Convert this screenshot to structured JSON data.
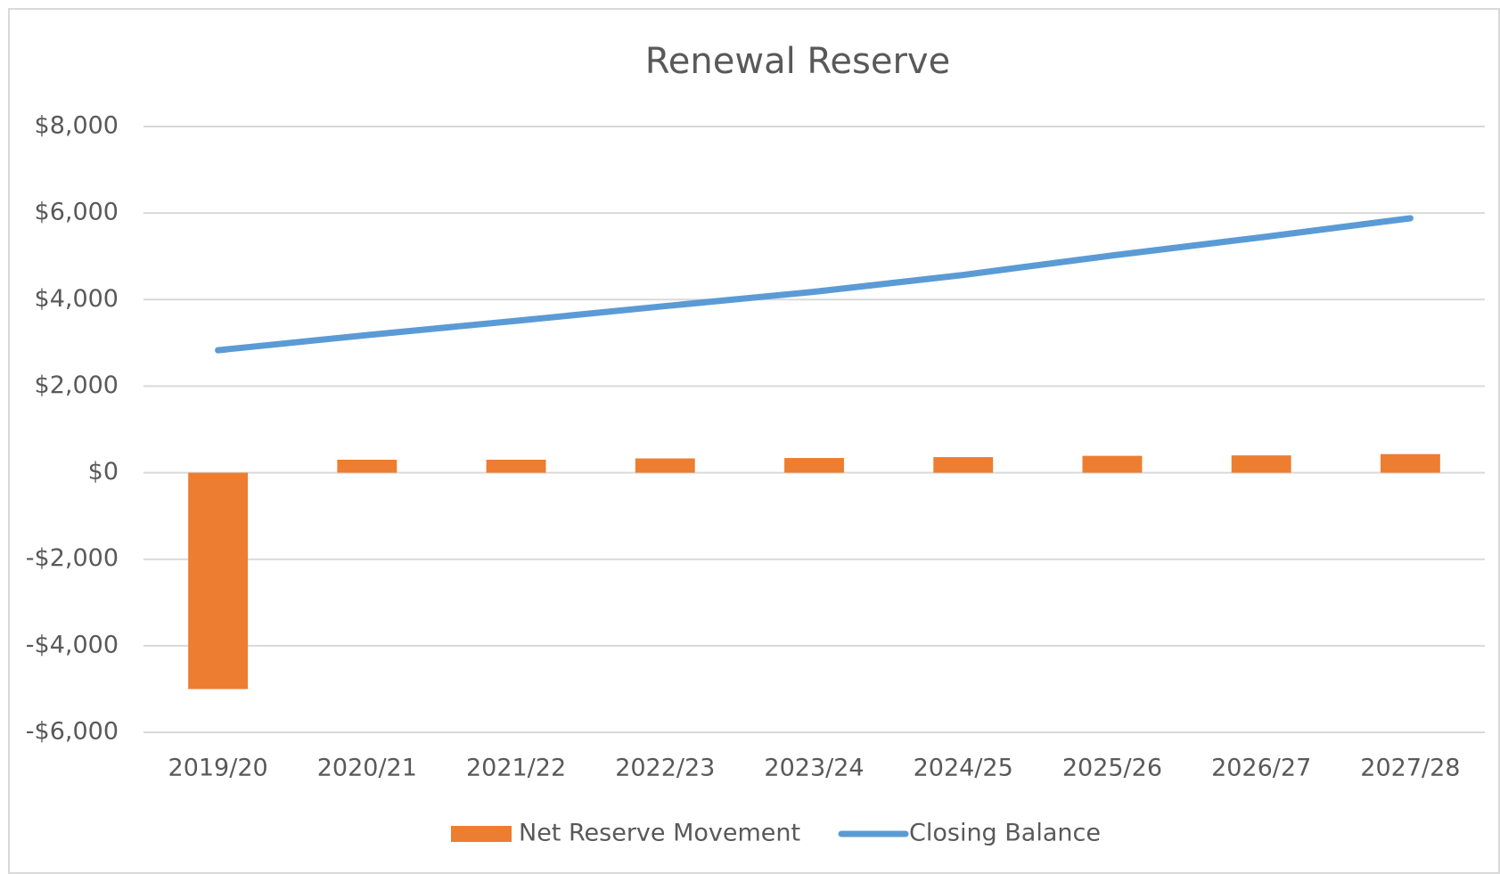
{
  "chart_data": {
    "type": "bar_line",
    "title": "Renewal Reserve",
    "categories": [
      "2019/20",
      "2020/21",
      "2021/22",
      "2022/23",
      "2023/24",
      "2024/25",
      "2025/26",
      "2026/27",
      "2027/28"
    ],
    "series": [
      {
        "name": "Net Reserve Movement",
        "type": "bar",
        "color": "#ed7d31",
        "values": [
          -5000,
          300,
          300,
          330,
          340,
          360,
          390,
          400,
          430
        ]
      },
      {
        "name": "Closing Balance",
        "type": "line",
        "color": "#5b9bd5",
        "values": [
          2830,
          3180,
          3510,
          3850,
          4180,
          4570,
          5020,
          5440,
          5880
        ]
      }
    ],
    "ylim": [
      -6000,
      8000
    ],
    "yticks": [
      {
        "value": -6000,
        "label": "-$6,000"
      },
      {
        "value": -4000,
        "label": "-$4,000"
      },
      {
        "value": -2000,
        "label": "-$2,000"
      },
      {
        "value": 0,
        "label": "$0"
      },
      {
        "value": 2000,
        "label": "$2,000"
      },
      {
        "value": 4000,
        "label": "$4,000"
      },
      {
        "value": 6000,
        "label": "$6,000"
      },
      {
        "value": 8000,
        "label": "$8,000"
      }
    ],
    "grid": true,
    "legend": "bottom"
  }
}
